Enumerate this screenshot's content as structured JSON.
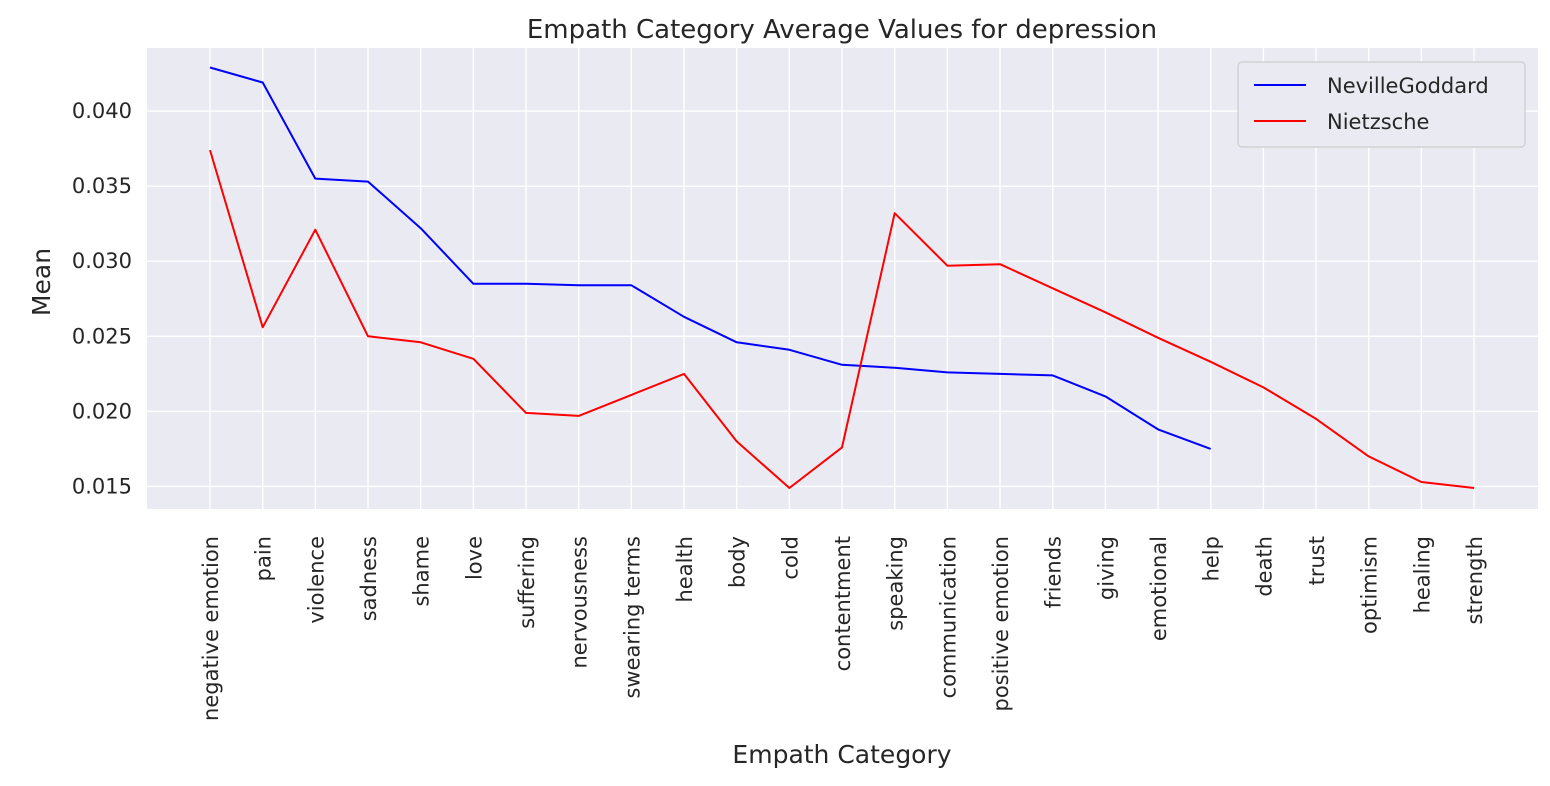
{
  "chart_data": {
    "type": "line",
    "title": "Empath Category Average Values for depression",
    "xlabel": "Empath Category",
    "ylabel": "Mean",
    "ylim": [
      0.0135,
      0.0442
    ],
    "yticks": [
      "0.015",
      "0.020",
      "0.025",
      "0.030",
      "0.035",
      "0.040"
    ],
    "categories": [
      "negative emotion",
      "pain",
      "violence",
      "sadness",
      "shame",
      "love",
      "suffering",
      "nervousness",
      "swearing terms",
      "health",
      "body",
      "cold",
      "contentment",
      "speaking",
      "communication",
      "positive emotion",
      "friends",
      "giving",
      "emotional",
      "help",
      "death",
      "trust",
      "optimism",
      "healing",
      "strength"
    ],
    "grid": true,
    "legend_position": "top-right",
    "series": [
      {
        "name": "NevilleGoddard",
        "color": "#0000ff",
        "values": [
          0.0429,
          0.0419,
          0.0355,
          0.0353,
          0.0322,
          0.0285,
          0.0285,
          0.0284,
          0.0284,
          0.0263,
          0.0246,
          0.0241,
          0.0231,
          0.0229,
          0.0226,
          0.0225,
          0.0224,
          0.021,
          0.0188,
          0.0175,
          null,
          null,
          null,
          null,
          null
        ]
      },
      {
        "name": "Nietzsche",
        "color": "#ff0000",
        "values": [
          0.0374,
          0.0256,
          0.0321,
          0.025,
          0.0246,
          0.0235,
          0.0199,
          0.0197,
          0.0211,
          0.0225,
          0.018,
          0.0149,
          0.0176,
          0.0332,
          0.0297,
          0.0298,
          0.0282,
          0.0266,
          0.0249,
          0.0233,
          0.0216,
          0.0195,
          0.017,
          0.0153,
          0.0149
        ]
      }
    ]
  }
}
